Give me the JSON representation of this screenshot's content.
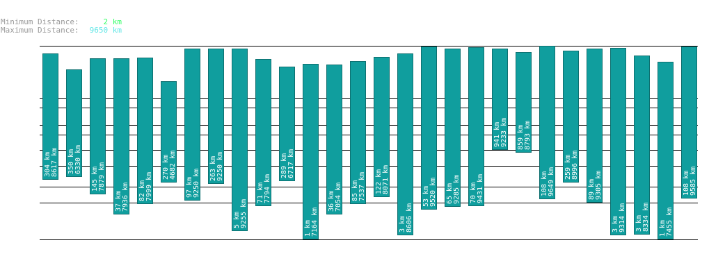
{
  "stats": {
    "min_label": "Minimum Distance:",
    "min_value": "2 km",
    "max_label": "Maximum Distance:",
    "max_value": "9650 km",
    "min_color": "#33ff66",
    "max_color": "#5fe6e6"
  },
  "colors": {
    "bar": "#109e9e",
    "bar_stroke": "#0d6f6f",
    "label": "#ffffff",
    "line": "#000000"
  },
  "chart_data": {
    "type": "bar",
    "series": [
      {
        "values_top": [
          8617,
          6330,
          7879,
          7936,
          7999,
          4682,
          9250,
          9250,
          9255,
          7794,
          6717,
          7164,
          7054,
          7537,
          8071,
          8606,
          9520,
          9285,
          9431,
          9233,
          8793,
          9649,
          8996,
          9305,
          9314,
          8334,
          7455,
          9585
        ],
        "values_bottom": [
          304,
          350,
          145,
          37,
          82,
          270,
          97,
          263,
          5,
          71,
          289,
          1,
          36,
          85,
          122,
          3,
          53,
          65,
          70,
          941,
          859,
          108,
          259,
          89,
          3,
          3,
          1,
          108
        ]
      }
    ],
    "labels_top": [
      "8617 km",
      "6330 km",
      "7879 km",
      "7936 km",
      "7999 km",
      "4682 km",
      "9250 km",
      "9250 km",
      "9255 km",
      "7794 km",
      "6717 km",
      "7164 km",
      "7054 km",
      "7537 km",
      "8071 km",
      "8606 km",
      "9520 km",
      "9285 km",
      "9431 km",
      "9233 km",
      "8793 km",
      "9649 km",
      "8996 km",
      "9305 km",
      "9314 km",
      "8334 km",
      "7455 km",
      "9585 km"
    ],
    "labels_bottom": [
      "304 km",
      "350 km",
      "145 km",
      "37 km",
      "82 km",
      "270 km",
      "97 km",
      "263 km",
      "5 km",
      "71 km",
      "289 km",
      "1 km",
      "36 km",
      "85 km",
      "122 km",
      "3 km",
      "53 km",
      "65 km",
      "70 km",
      "941 km",
      "859 km",
      "108 km",
      "259 km",
      "89 km",
      "3 km",
      "3 km",
      "1 km",
      "108 km"
    ],
    "reference_lines": [
      9650,
      1000,
      650,
      300,
      200,
      100,
      50,
      20,
      10,
      2
    ]
  }
}
